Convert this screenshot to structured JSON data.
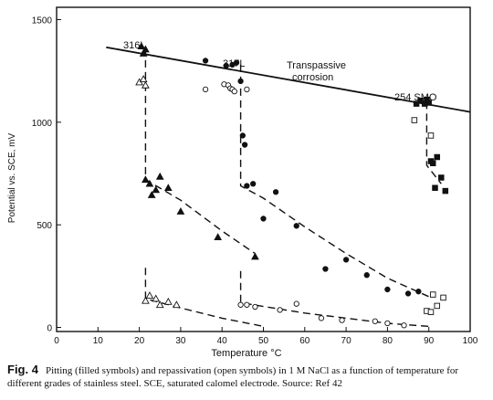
{
  "caption": {
    "label": "Fig. 4",
    "text": "Pitting (filled symbols) and repassivation (open symbols) in 1 M NaCl as a function of temperature for different grades of stainless steel. SCE, saturated calomel electrode. Source: Ref 42"
  },
  "chart_data": {
    "type": "scatter",
    "title": "",
    "xlabel": "Temperature °C",
    "ylabel": "Potential vs. SCE, mV",
    "xlim": [
      0,
      100
    ],
    "ylim": [
      -20,
      1560
    ],
    "xticks": [
      0,
      10,
      20,
      30,
      40,
      50,
      60,
      70,
      80,
      90,
      100
    ],
    "yticks": [
      0,
      500,
      1000,
      1500
    ],
    "grid": false,
    "annotations": [
      "316L",
      "317L",
      "254 SMO",
      "Transpassive",
      "corrosion"
    ],
    "transpassive_line": [
      [
        12,
        1365
      ],
      [
        100,
        1050
      ]
    ],
    "series": [
      {
        "marker": "filled-triangle",
        "points": [
          [
            20.5,
            1370
          ],
          [
            21.5,
            1355
          ],
          [
            21,
            1335
          ],
          [
            21.5,
            720
          ],
          [
            22.5,
            700
          ],
          [
            23,
            645
          ],
          [
            24,
            670
          ],
          [
            25,
            735
          ],
          [
            27,
            680
          ],
          [
            30,
            565
          ],
          [
            39,
            440
          ],
          [
            48,
            345
          ]
        ]
      },
      {
        "marker": "open-triangle",
        "points": [
          [
            20,
            1195
          ],
          [
            21,
            1210
          ],
          [
            21.5,
            1180
          ],
          [
            21.5,
            130
          ],
          [
            22.5,
            155
          ],
          [
            24,
            140
          ],
          [
            25,
            110
          ],
          [
            27,
            125
          ],
          [
            29,
            110
          ]
        ]
      },
      {
        "marker": "filled-circle",
        "points": [
          [
            36,
            1300
          ],
          [
            41,
            1275
          ],
          [
            42.5,
            1280
          ],
          [
            43.5,
            1290
          ],
          [
            44.5,
            1200
          ],
          [
            45,
            935
          ],
          [
            45.5,
            890
          ],
          [
            46,
            690
          ],
          [
            47.5,
            700
          ],
          [
            50,
            530
          ],
          [
            53,
            660
          ],
          [
            58,
            495
          ],
          [
            65,
            285
          ],
          [
            70,
            330
          ],
          [
            75,
            255
          ],
          [
            80,
            185
          ],
          [
            85,
            165
          ],
          [
            87.5,
            175
          ]
        ]
      },
      {
        "marker": "open-circle",
        "points": [
          [
            36,
            1160
          ],
          [
            40.5,
            1185
          ],
          [
            41.5,
            1180
          ],
          [
            42,
            1165
          ],
          [
            42.5,
            1160
          ],
          [
            43,
            1150
          ],
          [
            46,
            1160
          ],
          [
            44.5,
            110
          ],
          [
            46,
            110
          ],
          [
            48,
            100
          ],
          [
            54,
            85
          ],
          [
            58,
            115
          ],
          [
            64,
            45
          ],
          [
            69,
            35
          ],
          [
            77,
            30
          ],
          [
            80,
            20
          ],
          [
            84,
            10
          ]
        ]
      },
      {
        "marker": "filled-square",
        "points": [
          [
            87,
            1090
          ],
          [
            88,
            1105
          ],
          [
            89,
            1090
          ],
          [
            89.5,
            1110
          ],
          [
            90,
            1095
          ],
          [
            90.5,
            810
          ],
          [
            91,
            800
          ],
          [
            92,
            830
          ],
          [
            93,
            730
          ],
          [
            91.5,
            680
          ],
          [
            94,
            665
          ]
        ]
      },
      {
        "marker": "open-square",
        "points": [
          [
            86.5,
            1010
          ],
          [
            90.5,
            935
          ],
          [
            89.5,
            80
          ],
          [
            90.5,
            75
          ],
          [
            91,
            160
          ],
          [
            92,
            105
          ],
          [
            93.5,
            145
          ]
        ]
      }
    ],
    "curves": [
      {
        "label": "316L pitting",
        "points": [
          [
            21.5,
            1360
          ],
          [
            21.5,
            720
          ],
          [
            30,
            620
          ],
          [
            40,
            470
          ],
          [
            48,
            360
          ]
        ]
      },
      {
        "label": "316L repassivation",
        "points": [
          [
            21.5,
            290
          ],
          [
            21.5,
            140
          ],
          [
            30,
            95
          ],
          [
            40,
            45
          ],
          [
            50,
            5
          ]
        ]
      },
      {
        "label": "317L pitting",
        "points": [
          [
            44.5,
            1280
          ],
          [
            44.5,
            690
          ],
          [
            50,
            630
          ],
          [
            60,
            490
          ],
          [
            70,
            360
          ],
          [
            80,
            240
          ],
          [
            90,
            150
          ]
        ]
      },
      {
        "label": "317L repassivation",
        "points": [
          [
            44.5,
            275
          ],
          [
            44.5,
            120
          ],
          [
            60,
            70
          ],
          [
            70,
            45
          ],
          [
            80,
            20
          ],
          [
            90,
            5
          ]
        ]
      },
      {
        "label": "254 SMO pitting",
        "points": [
          [
            89.5,
            1100
          ],
          [
            89.5,
            790
          ],
          [
            93,
            700
          ]
        ]
      }
    ]
  }
}
